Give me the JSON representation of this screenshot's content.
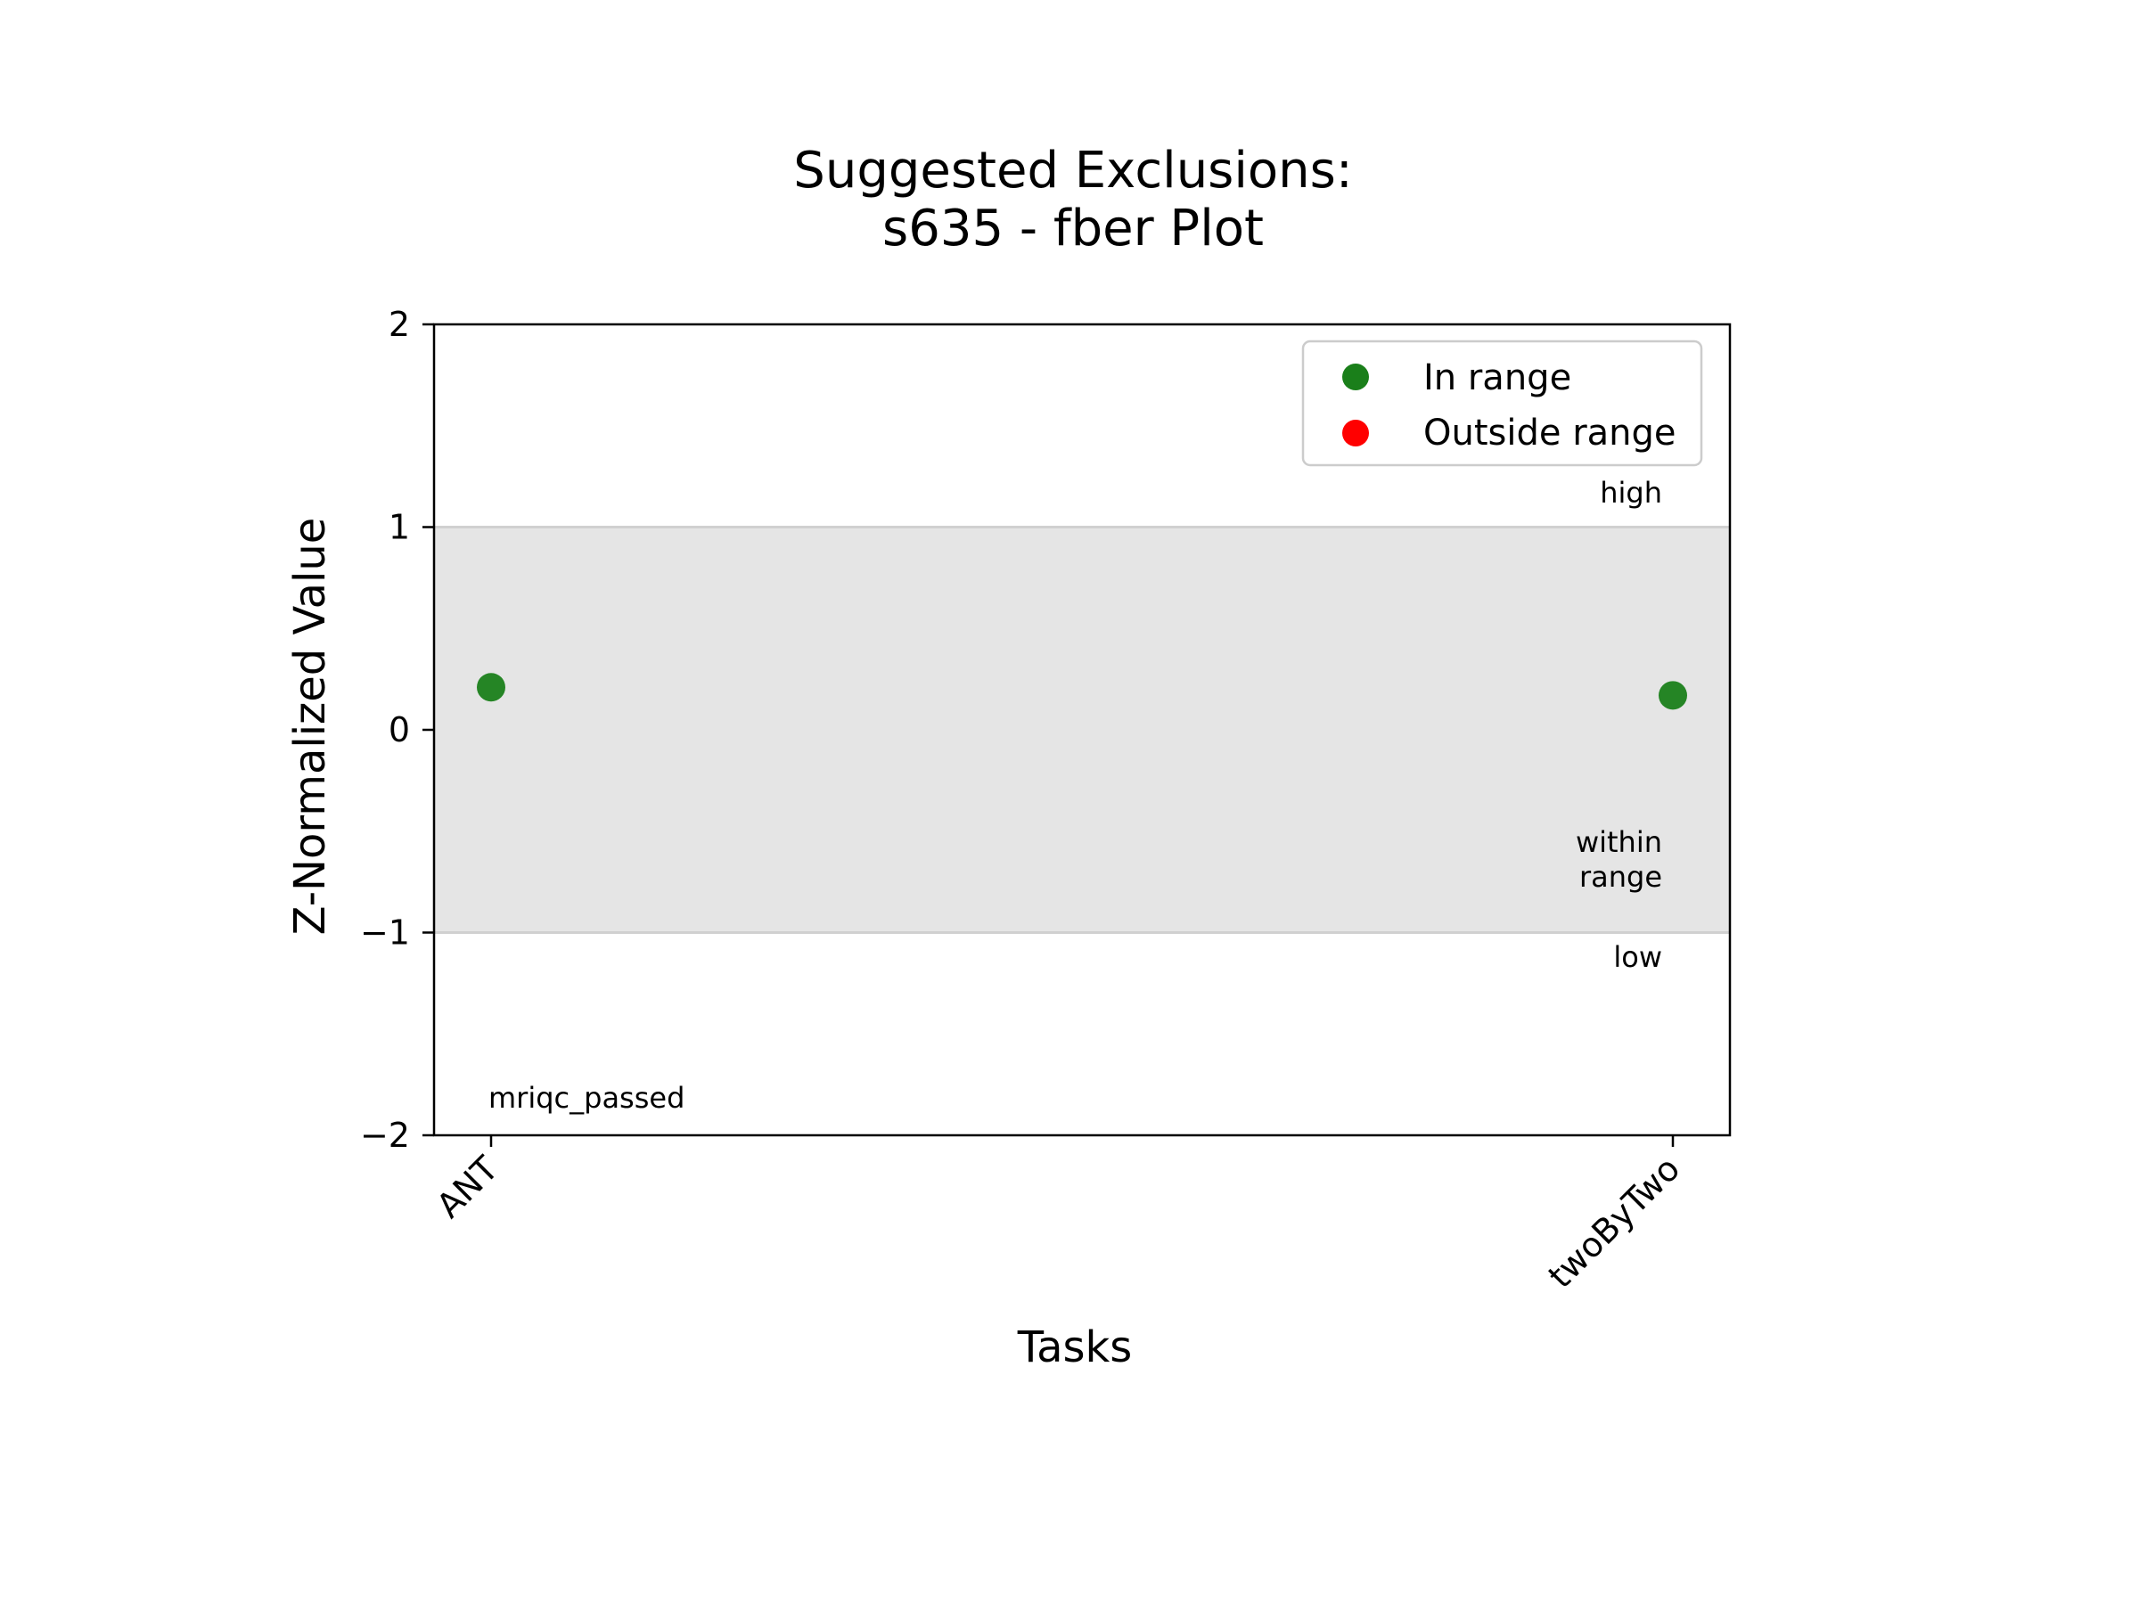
{
  "title_line1": "Suggested Exclusions:",
  "title_line2": "s635 - fber Plot",
  "colors": {
    "in_range": "#1a7f1a",
    "outside_range": "#ff0000",
    "band": "#e5e5e5",
    "band_edge": "#d0d0d0"
  },
  "legend": {
    "in_range_label": "In range",
    "outside_range_label": "Outside range",
    "placement": "top-right"
  },
  "annotations": {
    "high": "high",
    "within_line1": "within",
    "within_line2": "range",
    "low": "low",
    "status": "mriqc_passed"
  },
  "chart_data": {
    "type": "scatter",
    "title": "Suggested Exclusions:\ns635 - fber Plot",
    "xlabel": "Tasks",
    "ylabel": "Z-Normalized Value",
    "categories": [
      "ANT",
      "twoByTwo"
    ],
    "series": [
      {
        "name": "In range",
        "values": [
          0.21,
          0.17
        ]
      },
      {
        "name": "Outside range",
        "values": []
      }
    ],
    "ylim": [
      -2,
      2
    ],
    "yticks": [
      2,
      1,
      0,
      -1,
      -2
    ],
    "ytick_labels": [
      "2",
      "1",
      "0",
      "−1",
      "−2"
    ],
    "range_band": [
      -1,
      1
    ],
    "grid": false,
    "legend_placement": "top-right"
  }
}
